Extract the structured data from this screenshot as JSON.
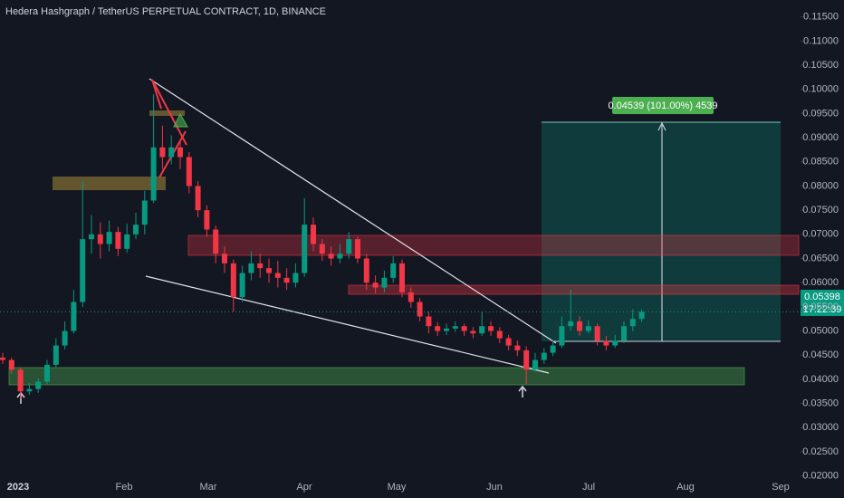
{
  "chart_data": {
    "type": "candlestick",
    "title": "Hedera Hashgraph / TetherUS PERPETUAL CONTRACT, 1D, BINANCE",
    "up_color": "#089981",
    "down_color": "#f23645",
    "x_labels": [
      "2023",
      "Feb",
      "Mar",
      "Apr",
      "May",
      "Jun",
      "Jul",
      "Aug",
      "Sep"
    ],
    "ylim": [
      0.0145,
      0.1185
    ],
    "yticks": [
      {
        "value": 0.02,
        "label": "0.02000"
      },
      {
        "value": 0.025,
        "label": "0.02500"
      },
      {
        "value": 0.03,
        "label": "0.03000"
      },
      {
        "value": 0.035,
        "label": "0.03500"
      },
      {
        "value": 0.04,
        "label": "0.04000"
      },
      {
        "value": 0.045,
        "label": "0.04500"
      },
      {
        "value": 0.05,
        "label": "0.05000"
      },
      {
        "value": 0.055,
        "label": "0.05500"
      },
      {
        "value": 0.06,
        "label": "0.06000"
      },
      {
        "value": 0.065,
        "label": "0.06500"
      },
      {
        "value": 0.07,
        "label": "0.07000"
      },
      {
        "value": 0.075,
        "label": "0.07500"
      },
      {
        "value": 0.08,
        "label": "0.08000"
      },
      {
        "value": 0.085,
        "label": "0.08500"
      },
      {
        "value": 0.09,
        "label": "0.09000"
      },
      {
        "value": 0.095,
        "label": "0.09500"
      },
      {
        "value": 0.1,
        "label": "0.10000"
      },
      {
        "value": 0.105,
        "label": "0.10500"
      },
      {
        "value": 0.11,
        "label": "0.11000"
      },
      {
        "value": 0.115,
        "label": "0.11500"
      }
    ],
    "last_price": 0.05398,
    "countdown": "17:22:39",
    "measure_label": "0.04539 (101.00%) 4539",
    "candles": [
      [
        0.0445,
        0.0455,
        0.0432,
        0.044
      ],
      [
        0.044,
        0.0445,
        0.0412,
        0.042
      ],
      [
        0.042,
        0.0425,
        0.036,
        0.0375
      ],
      [
        0.0375,
        0.0392,
        0.0368,
        0.038
      ],
      [
        0.038,
        0.0402,
        0.0372,
        0.0395
      ],
      [
        0.0395,
        0.044,
        0.039,
        0.043
      ],
      [
        0.043,
        0.0485,
        0.0425,
        0.047
      ],
      [
        0.047,
        0.052,
        0.0462,
        0.05
      ],
      [
        0.05,
        0.0585,
        0.0495,
        0.056
      ],
      [
        0.056,
        0.081,
        0.055,
        0.069
      ],
      [
        0.069,
        0.074,
        0.066,
        0.07
      ],
      [
        0.07,
        0.0725,
        0.065,
        0.068
      ],
      [
        0.068,
        0.0728,
        0.0665,
        0.0705
      ],
      [
        0.0705,
        0.0715,
        0.0655,
        0.067
      ],
      [
        0.067,
        0.0722,
        0.0662,
        0.07
      ],
      [
        0.07,
        0.0745,
        0.069,
        0.072
      ],
      [
        0.072,
        0.079,
        0.07,
        0.077
      ],
      [
        0.077,
        0.099,
        0.0765,
        0.088
      ],
      [
        0.088,
        0.0925,
        0.0835,
        0.086
      ],
      [
        0.086,
        0.0905,
        0.0845,
        0.088
      ],
      [
        0.088,
        0.0895,
        0.0835,
        0.086
      ],
      [
        0.086,
        0.087,
        0.0785,
        0.08
      ],
      [
        0.08,
        0.081,
        0.0735,
        0.075
      ],
      [
        0.075,
        0.076,
        0.0695,
        0.071
      ],
      [
        0.071,
        0.0718,
        0.064,
        0.066
      ],
      [
        0.066,
        0.0675,
        0.062,
        0.064
      ],
      [
        0.064,
        0.0648,
        0.054,
        0.057
      ],
      [
        0.057,
        0.0635,
        0.056,
        0.062
      ],
      [
        0.062,
        0.0665,
        0.0605,
        0.064
      ],
      [
        0.064,
        0.066,
        0.061,
        0.063
      ],
      [
        0.063,
        0.065,
        0.06,
        0.062
      ],
      [
        0.062,
        0.0645,
        0.059,
        0.061
      ],
      [
        0.061,
        0.063,
        0.0585,
        0.06
      ],
      [
        0.06,
        0.064,
        0.059,
        0.062
      ],
      [
        0.062,
        0.0775,
        0.0612,
        0.072
      ],
      [
        0.072,
        0.0735,
        0.0665,
        0.068
      ],
      [
        0.068,
        0.069,
        0.0645,
        0.066
      ],
      [
        0.066,
        0.0675,
        0.0635,
        0.065
      ],
      [
        0.065,
        0.068,
        0.064,
        0.066
      ],
      [
        0.066,
        0.0705,
        0.065,
        0.069
      ],
      [
        0.069,
        0.0695,
        0.064,
        0.065
      ],
      [
        0.065,
        0.066,
        0.0585,
        0.06
      ],
      [
        0.06,
        0.0615,
        0.0578,
        0.059
      ],
      [
        0.059,
        0.0625,
        0.058,
        0.061
      ],
      [
        0.061,
        0.0655,
        0.06,
        0.064
      ],
      [
        0.064,
        0.0648,
        0.057,
        0.058
      ],
      [
        0.058,
        0.059,
        0.0548,
        0.056
      ],
      [
        0.056,
        0.0568,
        0.052,
        0.053
      ],
      [
        0.053,
        0.054,
        0.0495,
        0.051
      ],
      [
        0.051,
        0.0518,
        0.049,
        0.05
      ],
      [
        0.05,
        0.0515,
        0.0492,
        0.0505
      ],
      [
        0.0505,
        0.052,
        0.0498,
        0.051
      ],
      [
        0.051,
        0.0515,
        0.049,
        0.05
      ],
      [
        0.05,
        0.0508,
        0.0485,
        0.0495
      ],
      [
        0.0495,
        0.054,
        0.049,
        0.051
      ],
      [
        0.051,
        0.052,
        0.049,
        0.05
      ],
      [
        0.05,
        0.0508,
        0.0475,
        0.0485
      ],
      [
        0.0485,
        0.0492,
        0.046,
        0.047
      ],
      [
        0.047,
        0.048,
        0.0448,
        0.046
      ],
      [
        0.046,
        0.0468,
        0.039,
        0.042
      ],
      [
        0.042,
        0.0455,
        0.0415,
        0.044
      ],
      [
        0.044,
        0.0465,
        0.0432,
        0.0455
      ],
      [
        0.0455,
        0.048,
        0.0448,
        0.047
      ],
      [
        0.047,
        0.053,
        0.0465,
        0.051
      ],
      [
        0.051,
        0.0585,
        0.05,
        0.052
      ],
      [
        0.052,
        0.053,
        0.049,
        0.05
      ],
      [
        0.05,
        0.0522,
        0.0495,
        0.051
      ],
      [
        0.051,
        0.0515,
        0.047,
        0.048
      ],
      [
        0.048,
        0.049,
        0.046,
        0.047
      ],
      [
        0.047,
        0.0492,
        0.0465,
        0.048
      ],
      [
        0.048,
        0.052,
        0.0475,
        0.051
      ],
      [
        0.051,
        0.0545,
        0.05,
        0.0525
      ],
      [
        0.0525,
        0.0545,
        0.0518,
        0.05398
      ]
    ]
  }
}
